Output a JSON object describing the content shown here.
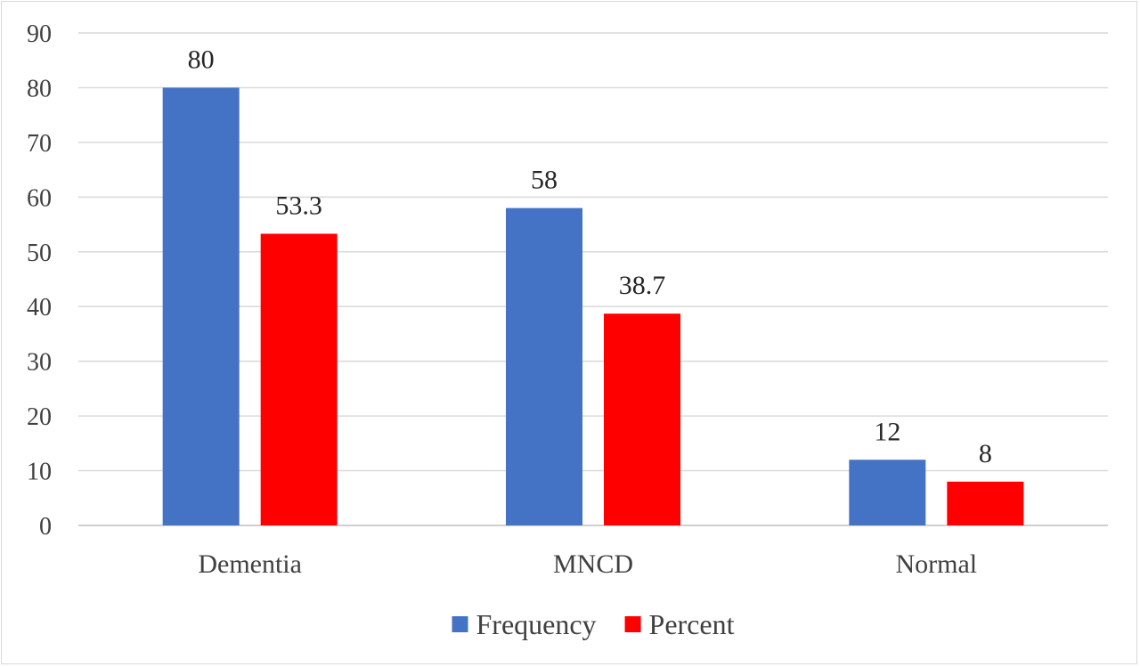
{
  "chart_data": {
    "type": "bar",
    "categories": [
      "Dementia",
      "MNCD",
      "Normal"
    ],
    "series": [
      {
        "name": "Frequency",
        "values": [
          80,
          58,
          12
        ],
        "labels": [
          "80",
          "58",
          "12"
        ],
        "color": "#4472c4"
      },
      {
        "name": "Percent",
        "values": [
          53.3,
          38.7,
          8
        ],
        "labels": [
          "53.3",
          "38.7",
          "8"
        ],
        "color": "#ff0000"
      }
    ],
    "y_ticks": [
      "0",
      "10",
      "20",
      "30",
      "40",
      "50",
      "60",
      "70",
      "80",
      "90"
    ],
    "ylim": [
      0,
      90
    ],
    "grid": true,
    "legend": "bottom-center",
    "title": "",
    "xlabel": "",
    "ylabel": ""
  }
}
